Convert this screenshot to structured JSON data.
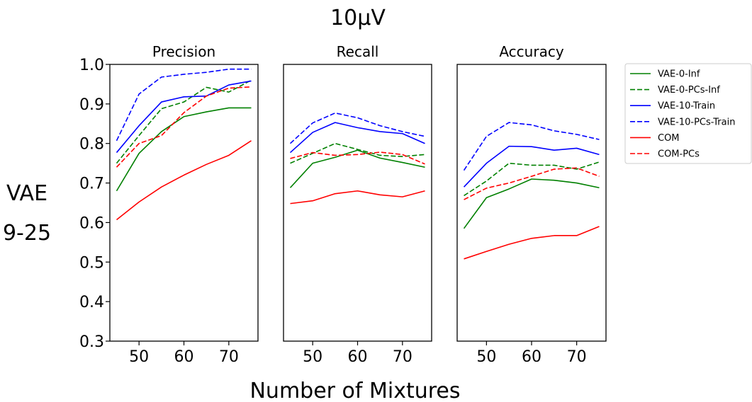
{
  "figure": {
    "title": "10μV",
    "row_label_line1": "VAE",
    "row_label_line2": "9-25",
    "xlabel": "Number of Mixtures"
  },
  "legend": {
    "placement": "right",
    "entries": [
      {
        "name": "VAE-0-Inf",
        "color": "#008000",
        "dash": "solid"
      },
      {
        "name": "VAE-0-PCs-Inf",
        "color": "#008000",
        "dash": "dashed"
      },
      {
        "name": "VAE-10-Train",
        "color": "#0000ff",
        "dash": "solid"
      },
      {
        "name": "VAE-10-PCs-Train",
        "color": "#0000ff",
        "dash": "dashed"
      },
      {
        "name": "COM",
        "color": "#ff0000",
        "dash": "solid"
      },
      {
        "name": "COM-PCs",
        "color": "#ff0000",
        "dash": "dashed"
      }
    ]
  },
  "chart_data": [
    {
      "type": "line",
      "title": "Precision",
      "x": [
        45,
        50,
        55,
        60,
        65,
        70,
        75
      ],
      "xlim": [
        43.5,
        76.5
      ],
      "ylim": [
        0.3,
        1.0
      ],
      "xticks": [
        50,
        60,
        70
      ],
      "yticks": [
        0.3,
        0.4,
        0.5,
        0.6,
        0.7,
        0.8,
        0.9,
        1.0
      ],
      "show_yticks": true,
      "series": [
        {
          "name": "VAE-0-Inf",
          "values": [
            0.68,
            0.775,
            0.83,
            0.868,
            0.88,
            0.89,
            0.89
          ]
        },
        {
          "name": "VAE-0-PCs-Inf",
          "values": [
            0.75,
            0.82,
            0.888,
            0.905,
            0.942,
            0.93,
            0.96
          ]
        },
        {
          "name": "VAE-10-Train",
          "values": [
            0.777,
            0.845,
            0.905,
            0.918,
            0.92,
            0.948,
            0.958
          ]
        },
        {
          "name": "VAE-10-PCs-Train",
          "values": [
            0.807,
            0.925,
            0.968,
            0.975,
            0.98,
            0.988,
            0.988
          ]
        },
        {
          "name": "COM",
          "values": [
            0.607,
            0.652,
            0.69,
            0.72,
            0.747,
            0.77,
            0.807
          ]
        },
        {
          "name": "COM-PCs",
          "values": [
            0.74,
            0.8,
            0.82,
            0.878,
            0.92,
            0.94,
            0.943
          ]
        }
      ]
    },
    {
      "type": "line",
      "title": "Recall",
      "x": [
        45,
        50,
        55,
        60,
        65,
        70,
        75
      ],
      "xlim": [
        43.5,
        76.5
      ],
      "ylim": [
        0.3,
        1.0
      ],
      "xticks": [
        50,
        60,
        70
      ],
      "yticks": [],
      "show_yticks": false,
      "series": [
        {
          "name": "VAE-0-Inf",
          "values": [
            0.688,
            0.75,
            0.765,
            0.783,
            0.763,
            0.752,
            0.74
          ]
        },
        {
          "name": "VAE-0-PCs-Inf",
          "values": [
            0.75,
            0.775,
            0.8,
            0.785,
            0.77,
            0.767,
            0.772
          ]
        },
        {
          "name": "VAE-10-Train",
          "values": [
            0.777,
            0.828,
            0.853,
            0.84,
            0.83,
            0.825,
            0.8
          ]
        },
        {
          "name": "VAE-10-PCs-Train",
          "values": [
            0.8,
            0.852,
            0.877,
            0.865,
            0.845,
            0.83,
            0.818
          ]
        },
        {
          "name": "COM",
          "values": [
            0.648,
            0.655,
            0.673,
            0.68,
            0.67,
            0.665,
            0.68
          ]
        },
        {
          "name": "COM-PCs",
          "values": [
            0.762,
            0.777,
            0.77,
            0.772,
            0.778,
            0.772,
            0.748
          ]
        }
      ]
    },
    {
      "type": "line",
      "title": "Accuracy",
      "x": [
        45,
        50,
        55,
        60,
        65,
        70,
        75
      ],
      "xlim": [
        43.5,
        76.5
      ],
      "ylim": [
        0.3,
        1.0
      ],
      "xticks": [
        50,
        60,
        70
      ],
      "yticks": [],
      "show_yticks": false,
      "series": [
        {
          "name": "VAE-0-Inf",
          "values": [
            0.585,
            0.663,
            0.685,
            0.71,
            0.707,
            0.7,
            0.688
          ]
        },
        {
          "name": "VAE-0-PCs-Inf",
          "values": [
            0.668,
            0.705,
            0.75,
            0.745,
            0.745,
            0.735,
            0.753
          ]
        },
        {
          "name": "VAE-10-Train",
          "values": [
            0.69,
            0.75,
            0.793,
            0.792,
            0.783,
            0.788,
            0.772
          ]
        },
        {
          "name": "VAE-10-PCs-Train",
          "values": [
            0.732,
            0.818,
            0.853,
            0.847,
            0.832,
            0.823,
            0.81
          ]
        },
        {
          "name": "COM",
          "values": [
            0.508,
            0.527,
            0.545,
            0.56,
            0.567,
            0.567,
            0.59
          ]
        },
        {
          "name": "COM-PCs",
          "values": [
            0.658,
            0.687,
            0.7,
            0.717,
            0.735,
            0.738,
            0.717
          ]
        }
      ]
    }
  ]
}
